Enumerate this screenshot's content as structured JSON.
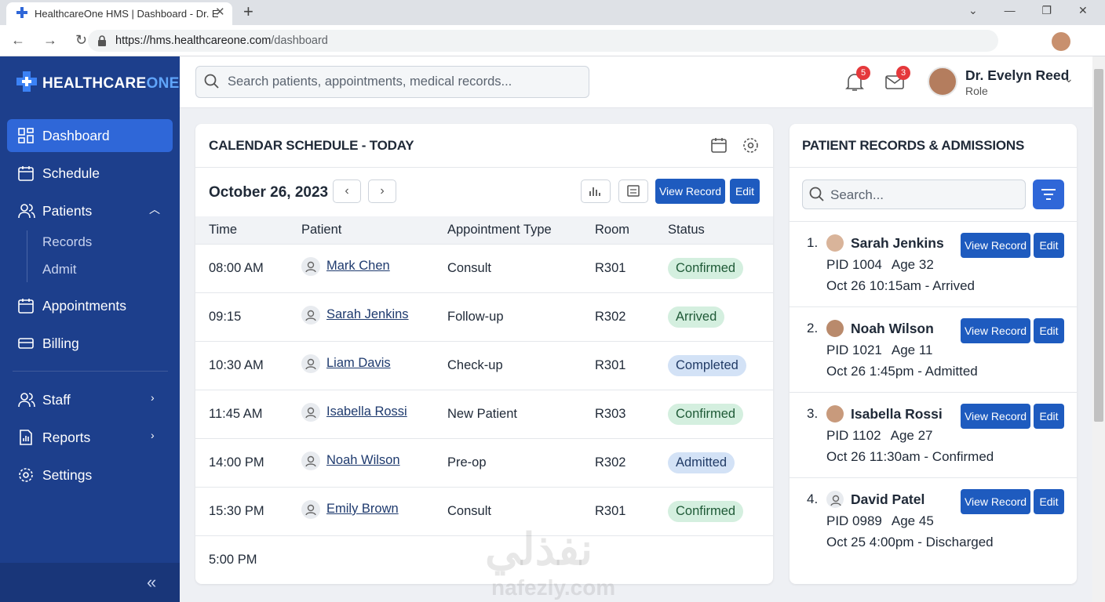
{
  "browser": {
    "tab_title": "HealthcareOne HMS | Dashboard - Dr. E",
    "url_host": "https://hms.healthcareone.com",
    "url_path": "/dashboard"
  },
  "sidebar": {
    "brand": "HEALTHCARE",
    "brand_accent": "ONE",
    "nav": [
      "Dashboard",
      "Schedule",
      "Patients",
      "Appointments",
      "Billing"
    ],
    "subnav": [
      "Records",
      "Admit"
    ],
    "nav_secondary": [
      "Staff",
      "Reports",
      "Settings"
    ]
  },
  "header": {
    "search_placeholder": "Search patients, appointments, medical records...",
    "notifications": "5",
    "messages": "3",
    "user_name": "Dr. Evelyn Reed",
    "user_role": "Role"
  },
  "calendar": {
    "title": "CALENDAR SCHEDULE - TODAY",
    "date": "October 26, 2023",
    "buttons": [
      "View Record",
      "Edit"
    ],
    "columns": [
      "Time",
      "Patient",
      "Appointment Type",
      "Room",
      "Status"
    ],
    "rows": [
      [
        "08:00 AM",
        "Mark Chen",
        "Consult",
        "R301",
        "Confirmed"
      ],
      [
        "09:15",
        "Sarah Jenkins",
        "Follow-up",
        "R302",
        "Arrived"
      ],
      [
        "10:30 AM",
        "Liam Davis",
        "Check-up",
        "R301",
        "Completed"
      ],
      [
        "11:45 AM",
        "Isabella Rossi",
        "New Patient",
        "R303",
        "Confirmed"
      ],
      [
        "14:00 PM",
        "Noah Wilson",
        "Pre-op",
        "R302",
        "Admitted"
      ],
      [
        "15:30 PM",
        "Emily Brown",
        "Consult",
        "R301",
        "Confirmed"
      ]
    ],
    "last_time": "5:00 PM"
  },
  "records": {
    "title": "PATIENT RECORDS & ADMISSIONS",
    "search_placeholder": "Search...",
    "buttons": [
      "View Record",
      "Edit"
    ],
    "items": [
      {
        "index": "1.",
        "name": "Sarah Jenkins",
        "pid": "PID 1004",
        "age": "Age 32",
        "status": "Oct 26 10:15am - Arrived"
      },
      {
        "index": "2.",
        "name": "Noah Wilson",
        "pid": "PID 1021",
        "age": "Age 11",
        "status": "Oct 26 1:45pm - Admitted"
      },
      {
        "index": "3.",
        "name": "Isabella Rossi",
        "pid": "PID 1102",
        "age": "Age 27",
        "status": "Oct 26 11:30am - Confirmed"
      },
      {
        "index": "4.",
        "name": "David Patel",
        "pid": "PID 0989",
        "age": "Age 45",
        "status": "Oct 25 4:00pm - Discharged"
      }
    ]
  },
  "watermark": {
    "arabic": "نفذلي",
    "latin": "nafezly.com"
  }
}
